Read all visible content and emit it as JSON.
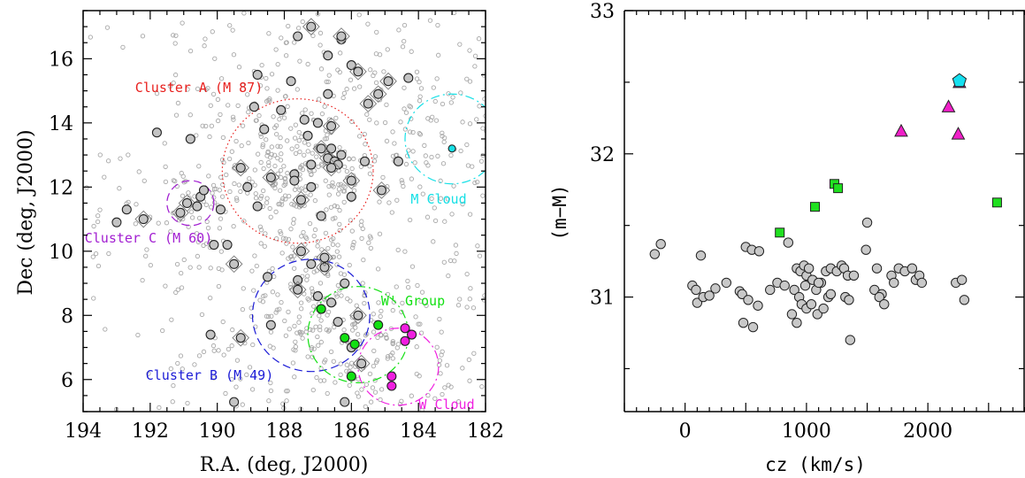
{
  "chart_data": [
    {
      "type": "scatter",
      "xlabel": "R.A. (deg, J2000)",
      "ylabel": "Dec (deg, J2000)",
      "xlim": [
        194,
        182
      ],
      "ylim": [
        5,
        17.5
      ],
      "x_ticks": [
        "194",
        "192",
        "190",
        "188",
        "186",
        "184",
        "182"
      ],
      "y_ticks": [
        "6",
        "8",
        "10",
        "12",
        "14",
        "16"
      ],
      "colors": {
        "cluster_a": "#e8201e",
        "cluster_b": "#1c1cd6",
        "cluster_c": "#a21fd1",
        "m_cloud": "#16e0e6",
        "w_prime_group": "#12e012",
        "w_cloud": "#f01fe0",
        "background": "#a8a8a8",
        "member_fill": "#c4c4c4"
      },
      "regions": [
        {
          "label": "Cluster A (M 87)",
          "center": [
            187.6,
            12.5
          ],
          "radius": 2.25,
          "style": "dotted",
          "color": "#e8201e"
        },
        {
          "label": "Cluster B (M 49)",
          "center": [
            187.2,
            8.0
          ],
          "radius": 1.75,
          "style": "dashed",
          "color": "#1c1cd6"
        },
        {
          "label": "Cluster C (M 60)",
          "center": [
            190.8,
            11.5
          ],
          "radius": 0.7,
          "style": "dashed",
          "color": "#a21fd1"
        },
        {
          "label": "M Cloud",
          "center": [
            183.0,
            13.5
          ],
          "radius": 1.4,
          "style": "dash-dot",
          "color": "#16e0e6"
        },
        {
          "label": "W' Group",
          "center": [
            185.8,
            7.4
          ],
          "radius": 1.5,
          "style": "dash-dot",
          "color": "#12e012"
        },
        {
          "label": "W Cloud",
          "center": [
            184.6,
            6.4
          ],
          "radius": 1.2,
          "style": "dash-dot",
          "color": "#f01fe0"
        }
      ],
      "series": [
        {
          "name": "",
          "kind": "member",
          "points": [
            [
              187.2,
              17.0
            ],
            [
              187.6,
              16.7
            ],
            [
              186.3,
              16.6
            ],
            [
              186.3,
              16.7
            ],
            [
              186.7,
              16.1
            ],
            [
              186.0,
              15.8
            ],
            [
              185.8,
              15.6
            ],
            [
              188.8,
              15.5
            ],
            [
              187.8,
              15.3
            ],
            [
              184.9,
              15.3
            ],
            [
              184.3,
              15.4
            ],
            [
              186.7,
              14.9
            ],
            [
              185.5,
              14.6
            ],
            [
              188.9,
              14.5
            ],
            [
              188.1,
              14.4
            ],
            [
              185.2,
              14.9
            ],
            [
              187.4,
              14.1
            ],
            [
              187.0,
              14.0
            ],
            [
              186.6,
              13.9
            ],
            [
              188.6,
              13.8
            ],
            [
              187.3,
              13.6
            ],
            [
              186.9,
              13.2
            ],
            [
              186.6,
              13.2
            ],
            [
              186.3,
              13.0
            ],
            [
              186.7,
              12.9
            ],
            [
              186.5,
              12.8
            ],
            [
              186.4,
              12.7
            ],
            [
              186.6,
              12.6
            ],
            [
              187.2,
              12.7
            ],
            [
              187.7,
              12.4
            ],
            [
              188.4,
              12.3
            ],
            [
              187.7,
              12.2
            ],
            [
              187.2,
              12.0
            ],
            [
              186.0,
              12.2
            ],
            [
              185.6,
              12.8
            ],
            [
              184.6,
              12.8
            ],
            [
              189.3,
              12.6
            ],
            [
              189.1,
              12.0
            ],
            [
              190.5,
              11.7
            ],
            [
              190.9,
              11.5
            ],
            [
              190.4,
              11.9
            ],
            [
              188.8,
              11.4
            ],
            [
              187.5,
              11.6
            ],
            [
              186.9,
              11.1
            ],
            [
              186.0,
              11.7
            ],
            [
              185.1,
              11.9
            ],
            [
              189.9,
              11.3
            ],
            [
              190.6,
              11.4
            ],
            [
              191.1,
              11.2
            ],
            [
              192.7,
              11.3
            ],
            [
              193.0,
              10.9
            ],
            [
              192.2,
              11.0
            ],
            [
              191.8,
              13.7
            ],
            [
              190.8,
              13.5
            ],
            [
              189.5,
              9.6
            ],
            [
              188.5,
              9.2
            ],
            [
              187.2,
              9.6
            ],
            [
              186.8,
              9.5
            ],
            [
              187.6,
              9.1
            ],
            [
              186.2,
              9.0
            ],
            [
              187.6,
              8.8
            ],
            [
              187.0,
              8.6
            ],
            [
              186.6,
              8.4
            ],
            [
              185.8,
              8.0
            ],
            [
              186.4,
              7.8
            ],
            [
              188.4,
              7.7
            ],
            [
              189.3,
              7.3
            ],
            [
              190.2,
              7.4
            ],
            [
              186.0,
              7.0
            ],
            [
              185.7,
              6.5
            ],
            [
              186.2,
              5.3
            ],
            [
              189.5,
              5.3
            ],
            [
              187.5,
              10.0
            ],
            [
              189.7,
              10.2
            ],
            [
              190.1,
              10.2
            ],
            [
              186.8,
              9.8
            ]
          ]
        },
        {
          "name": "",
          "kind": "w_prime",
          "points": [
            [
              186.9,
              8.2
            ],
            [
              186.2,
              7.3
            ],
            [
              185.9,
              7.1
            ],
            [
              186.0,
              6.1
            ],
            [
              185.2,
              7.7
            ]
          ]
        },
        {
          "name": "",
          "kind": "w_cloud",
          "points": [
            [
              184.4,
              7.6
            ],
            [
              184.2,
              7.4
            ],
            [
              184.4,
              7.2
            ],
            [
              184.8,
              6.1
            ],
            [
              184.8,
              5.8
            ]
          ]
        },
        {
          "name": "",
          "kind": "m_cloud",
          "points": [
            [
              183.0,
              13.2
            ]
          ]
        }
      ]
    },
    {
      "type": "scatter",
      "xlabel": "cz (km/s)",
      "ylabel": "(m−M)",
      "xlim": [
        -500,
        2800
      ],
      "ylim": [
        30.2,
        33.0
      ],
      "x_ticks": [
        "0",
        "1000",
        "2000"
      ],
      "y_ticks": [
        "31",
        "32",
        "33"
      ],
      "series": [
        {
          "name": "",
          "marker": "circle",
          "color": "#c8c8c8",
          "points": [
            [
              -250,
              31.3
            ],
            [
              -200,
              31.37
            ],
            [
              130,
              31.29
            ],
            [
              60,
              31.08
            ],
            [
              90,
              31.05
            ],
            [
              100,
              30.96
            ],
            [
              150,
              31.0
            ],
            [
              200,
              31.01
            ],
            [
              250,
              31.06
            ],
            [
              340,
              31.1
            ],
            [
              450,
              31.04
            ],
            [
              500,
              31.35
            ],
            [
              550,
              31.33
            ],
            [
              610,
              31.32
            ],
            [
              470,
              31.02
            ],
            [
              520,
              30.98
            ],
            [
              600,
              30.94
            ],
            [
              480,
              30.82
            ],
            [
              560,
              30.79
            ],
            [
              700,
              31.05
            ],
            [
              760,
              31.1
            ],
            [
              820,
              31.08
            ],
            [
              850,
              31.38
            ],
            [
              880,
              30.88
            ],
            [
              920,
              31.2
            ],
            [
              950,
              31.18
            ],
            [
              980,
              31.22
            ],
            [
              1000,
              31.15
            ],
            [
              1020,
              31.2
            ],
            [
              900,
              31.05
            ],
            [
              940,
              31.0
            ],
            [
              960,
              30.95
            ],
            [
              990,
              31.08
            ],
            [
              1050,
              31.12
            ],
            [
              1080,
              31.05
            ],
            [
              1120,
              31.1
            ],
            [
              1160,
              31.18
            ],
            [
              1200,
              31.2
            ],
            [
              1000,
              30.92
            ],
            [
              1040,
              30.95
            ],
            [
              1090,
              30.88
            ],
            [
              1140,
              30.92
            ],
            [
              1180,
              31.0
            ],
            [
              1200,
              31.02
            ],
            [
              1250,
              31.18
            ],
            [
              1290,
              31.22
            ],
            [
              1310,
              31.2
            ],
            [
              1340,
              31.15
            ],
            [
              1390,
              31.15
            ],
            [
              1320,
              31.0
            ],
            [
              1350,
              30.98
            ],
            [
              1360,
              30.7
            ],
            [
              1500,
              31.52
            ],
            [
              1490,
              31.33
            ],
            [
              1560,
              31.05
            ],
            [
              1620,
              31.02
            ],
            [
              1600,
              31.0
            ],
            [
              1640,
              30.95
            ],
            [
              1580,
              31.2
            ],
            [
              1700,
              31.15
            ],
            [
              1760,
              31.2
            ],
            [
              1810,
              31.18
            ],
            [
              1870,
              31.2
            ],
            [
              1900,
              31.12
            ],
            [
              1930,
              31.15
            ],
            [
              1950,
              31.1
            ],
            [
              1720,
              31.1
            ],
            [
              2230,
              31.1
            ],
            [
              2280,
              31.12
            ],
            [
              2300,
              30.98
            ],
            [
              920,
              30.82
            ],
            [
              1100,
              31.1
            ]
          ]
        },
        {
          "name": "",
          "marker": "square",
          "color": "#20e020",
          "points": [
            [
              780,
              31.45
            ],
            [
              1070,
              31.63
            ],
            [
              1230,
              31.79
            ],
            [
              1260,
              31.76
            ],
            [
              2570,
              31.66
            ]
          ]
        },
        {
          "name": "",
          "marker": "triangle",
          "color": "#f01fc8",
          "points": [
            [
              1780,
              32.16
            ],
            [
              2170,
              32.33
            ],
            [
              2250,
              32.14
            ],
            [
              2260,
              32.5
            ]
          ]
        },
        {
          "name": "",
          "marker": "pentagon",
          "color": "#16e0f0",
          "points": [
            [
              2260,
              32.51
            ]
          ]
        }
      ]
    }
  ]
}
